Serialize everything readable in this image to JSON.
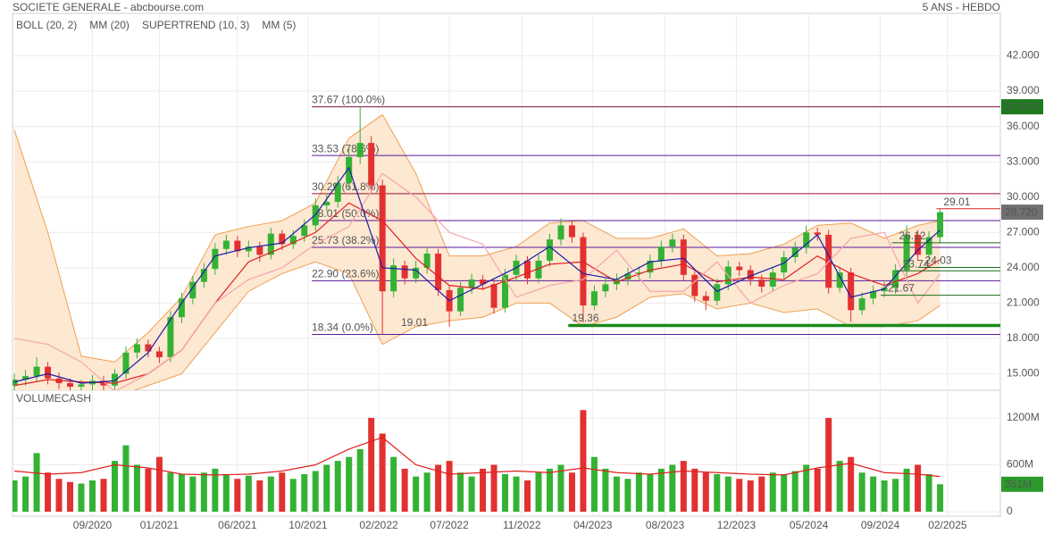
{
  "header": {
    "title": "SOCIETE GENERALE - abcbourse.com",
    "period": "5 ANS - HEBDO"
  },
  "chart_data": [
    {
      "type": "candlestick",
      "xlim": [
        -0.5,
        265.2
      ],
      "ylim": [
        13.6,
        45.6
      ],
      "yticks": [
        {
          "value": 15,
          "label": "15.000"
        },
        {
          "value": 18,
          "label": "18.000"
        },
        {
          "value": 21,
          "label": "21.000"
        },
        {
          "value": 24,
          "label": "24.000"
        },
        {
          "value": 27,
          "label": "27.000"
        },
        {
          "value": 30,
          "label": "30.000"
        },
        {
          "value": 33,
          "label": "33.000"
        },
        {
          "value": 36,
          "label": "36.000"
        },
        {
          "value": 39,
          "label": "39.000"
        },
        {
          "value": 42,
          "label": "42.000"
        }
      ],
      "grid": true,
      "up_color": "#33b233",
      "down_color": "#e23131",
      "candles": {
        "x": [
          0,
          3,
          6,
          9,
          12,
          15,
          18,
          21,
          24,
          27,
          30,
          33,
          36,
          39,
          42,
          45,
          48,
          51,
          54,
          57,
          60,
          63,
          66,
          69,
          72,
          75,
          78,
          81,
          84,
          87,
          90,
          93,
          96,
          99,
          102,
          105,
          108,
          111,
          114,
          117,
          120,
          123,
          126,
          129,
          132,
          135,
          138,
          141,
          144,
          147,
          150,
          153,
          156,
          159,
          162,
          165,
          168,
          171,
          174,
          177,
          180,
          183,
          186,
          189,
          192,
          195,
          198,
          201,
          204,
          207,
          210,
          213,
          216,
          219,
          222,
          225,
          228,
          231,
          234,
          237,
          240,
          243,
          246,
          249
        ],
        "open": [
          14.0,
          14.5,
          14.8,
          15.6,
          14.6,
          14.2,
          13.9,
          14.1,
          14.4,
          14.0,
          15.0,
          16.8,
          17.5,
          16.9,
          16.4,
          19.8,
          21.4,
          22.8,
          23.9,
          25.6,
          26.3,
          25.4,
          25.8,
          25.1,
          26.9,
          26.0,
          26.7,
          27.6,
          29.3,
          29.6,
          31.2,
          33.4,
          34.6,
          31.0,
          22.0,
          24.2,
          23.1,
          24.0,
          25.2,
          22.1,
          20.3,
          22.3,
          23.0,
          22.6,
          20.6,
          23.4,
          24.6,
          23.1,
          24.6,
          26.4,
          27.6,
          26.6,
          20.8,
          22.0,
          22.6,
          23.0,
          23.5,
          23.6,
          24.6,
          25.8,
          26.4,
          23.4,
          21.6,
          21.2,
          22.6,
          24.1,
          23.8,
          23.0,
          22.4,
          23.6,
          24.9,
          25.7,
          27.0,
          26.8,
          22.3,
          23.6,
          20.4,
          21.4,
          22.0,
          22.3,
          23.8,
          26.8,
          25.1,
          26.6
        ],
        "high": [
          15.0,
          15.3,
          16.4,
          16.0,
          15.1,
          14.6,
          14.5,
          14.9,
          14.8,
          15.4,
          17.3,
          18.0,
          17.9,
          17.3,
          20.3,
          21.9,
          23.3,
          24.4,
          26.1,
          26.8,
          26.7,
          26.3,
          26.2,
          27.4,
          27.2,
          27.2,
          28.1,
          29.9,
          30.2,
          31.8,
          34.2,
          37.67,
          35.2,
          31.5,
          24.8,
          24.6,
          24.6,
          25.8,
          25.6,
          22.5,
          22.8,
          23.5,
          23.4,
          23.0,
          23.9,
          25.1,
          25.0,
          25.1,
          26.9,
          28.2,
          28.0,
          27.0,
          22.5,
          23.1,
          23.5,
          24.0,
          24.1,
          25.1,
          26.3,
          26.9,
          26.8,
          23.8,
          22.0,
          23.1,
          24.6,
          24.5,
          24.2,
          23.4,
          24.1,
          25.4,
          26.2,
          27.6,
          27.4,
          27.2,
          24.1,
          24.0,
          21.9,
          22.5,
          22.8,
          24.3,
          27.6,
          27.2,
          27.1,
          29.01
        ],
        "low": [
          13.5,
          14.0,
          14.3,
          14.1,
          13.7,
          13.4,
          13.4,
          13.6,
          13.5,
          13.5,
          14.6,
          16.3,
          16.4,
          15.9,
          16.0,
          19.3,
          20.9,
          22.3,
          23.4,
          25.1,
          24.9,
          24.9,
          24.5,
          24.7,
          25.5,
          25.6,
          26.2,
          27.1,
          28.8,
          29.1,
          30.7,
          32.8,
          30.4,
          18.34,
          21.5,
          22.6,
          22.7,
          23.5,
          21.6,
          19.01,
          19.9,
          21.8,
          22.1,
          20.1,
          20.2,
          22.9,
          22.6,
          22.7,
          24.1,
          25.9,
          26.1,
          19.36,
          20.4,
          21.5,
          22.1,
          22.5,
          23.0,
          23.1,
          24.1,
          25.3,
          22.9,
          21.1,
          20.4,
          20.8,
          22.1,
          23.3,
          22.5,
          21.9,
          22.0,
          23.1,
          24.4,
          25.2,
          26.3,
          21.8,
          21.9,
          19.4,
          20.0,
          20.9,
          21.5,
          21.8,
          23.3,
          24.6,
          24.7,
          26.1
        ],
        "close": [
          14.5,
          14.8,
          15.6,
          14.6,
          14.2,
          13.9,
          14.1,
          14.4,
          14.0,
          15.0,
          16.8,
          17.5,
          16.9,
          16.4,
          19.8,
          21.4,
          22.8,
          23.9,
          25.6,
          26.3,
          25.4,
          25.8,
          25.1,
          26.9,
          26.0,
          26.7,
          27.6,
          29.3,
          29.6,
          31.2,
          33.4,
          34.6,
          31.0,
          22.0,
          24.2,
          23.1,
          24.0,
          25.2,
          22.1,
          20.3,
          22.3,
          23.0,
          22.6,
          20.6,
          23.4,
          24.6,
          23.1,
          24.6,
          26.4,
          27.6,
          26.6,
          20.8,
          22.0,
          22.6,
          23.0,
          23.5,
          23.6,
          24.6,
          25.8,
          26.4,
          23.4,
          21.6,
          21.2,
          22.6,
          24.1,
          23.8,
          23.0,
          22.4,
          23.6,
          24.9,
          25.7,
          27.0,
          26.8,
          22.3,
          23.6,
          20.4,
          21.4,
          22.0,
          22.3,
          23.8,
          26.8,
          25.1,
          26.6,
          28.72
        ]
      },
      "indicator_x": [
        0,
        9,
        18,
        27,
        36,
        45,
        54,
        63,
        72,
        81,
        90,
        99,
        108,
        117,
        126,
        135,
        144,
        153,
        162,
        171,
        180,
        189,
        198,
        207,
        216,
        225,
        234,
        243,
        249
      ],
      "bollinger": {
        "name": "BOLL (20, 2)",
        "color": "#f0a050",
        "fill": "#fde8d2",
        "upper": [
          35.7,
          27.0,
          16.5,
          16.0,
          18.5,
          21.5,
          26.8,
          27.5,
          28.0,
          29.5,
          35.0,
          37.0,
          32.0,
          25.0,
          25.0,
          25.8,
          27.8,
          28.0,
          26.5,
          26.5,
          27.3,
          25.0,
          25.2,
          26.0,
          27.6,
          27.8,
          26.5,
          27.6,
          28.0
        ],
        "lower": [
          12.0,
          12.5,
          13.0,
          13.0,
          14.0,
          15.0,
          18.5,
          22.0,
          23.5,
          24.5,
          23.5,
          17.5,
          19.0,
          19.5,
          19.8,
          21.0,
          21.0,
          19.0,
          19.8,
          21.5,
          21.8,
          20.5,
          21.0,
          20.2,
          20.5,
          19.0,
          19.0,
          19.5,
          20.8
        ]
      },
      "series": [
        {
          "name": "MM (20)",
          "color": "#e02020",
          "values": [
            14.0,
            14.5,
            14.3,
            14.2,
            15.0,
            17.0,
            21.0,
            24.5,
            25.7,
            27.0,
            29.5,
            28.0,
            24.8,
            22.5,
            22.2,
            23.2,
            24.3,
            24.5,
            22.8,
            23.8,
            24.3,
            22.8,
            23.2,
            23.0,
            25.0,
            23.5,
            22.5,
            23.5,
            24.7
          ]
        },
        {
          "name": "SUPERTREND (10, 3)",
          "color": "#f4a4ac",
          "values": [
            18,
            17.5,
            16,
            13.5,
            15,
            17,
            21,
            23,
            24,
            26,
            27.5,
            32,
            30,
            27,
            26,
            21.5,
            22.5,
            23,
            25.5,
            22,
            22,
            24.5,
            21,
            22.5,
            23.5,
            26.5,
            27,
            21,
            23.5
          ]
        },
        {
          "name": "MM (5)",
          "color": "#1c1ca8",
          "values": [
            14.3,
            15.0,
            14.2,
            14.4,
            16.8,
            21.0,
            25.0,
            25.7,
            26.1,
            28.5,
            32.5,
            24.0,
            23.8,
            21.2,
            22.6,
            24.0,
            25.8,
            23.5,
            23.0,
            24.5,
            24.8,
            22.0,
            23.3,
            24.4,
            26.8,
            21.5,
            22.2,
            25.5,
            27.2
          ]
        }
      ],
      "fib_from": 80,
      "fib_color": "#6a1aa0",
      "fib_levels": [
        {
          "value": 37.67,
          "label": "37.67 (100.0%)",
          "color": "#7a1040"
        },
        {
          "value": 33.53,
          "label": "33.53 (78.6%)",
          "color": "#5a1a9a"
        },
        {
          "value": 30.29,
          "label": "30.29 (61.8%)",
          "color": "#9a1030"
        },
        {
          "value": 28.01,
          "label": "28.01 (50.0%)",
          "color": "#5a1a9a"
        },
        {
          "value": 25.73,
          "label": "25.73 (38.2%)",
          "color": "#5a1a9a"
        },
        {
          "value": 22.9,
          "label": "22.90 (23.6%)",
          "color": "#5a1a9a"
        },
        {
          "value": 18.34,
          "label": "18.34 (0.0%)",
          "color": "#5a1a9a"
        }
      ],
      "lines": [
        {
          "value": 29.01,
          "label": "29.01",
          "from": 248,
          "color": "#e02020",
          "width": 1
        },
        {
          "value": 19.1,
          "from": 149,
          "color": "#1a8a1a",
          "width": 3.5
        },
        {
          "value": 26.12,
          "label": "26.12",
          "from": 236,
          "color": "#1a6a1a",
          "width": 1
        },
        {
          "value": 24.03,
          "label": "24.03",
          "from": 243,
          "color": "#1a6a1a",
          "width": 1
        },
        {
          "value": 23.74,
          "label": "23.74",
          "from": 237,
          "color": "#1a6a1a",
          "width": 1
        },
        {
          "value": 21.67,
          "label": "21.67",
          "from": 233,
          "color": "#1a6a1a",
          "width": 1
        }
      ],
      "point_labels": [
        {
          "x": 104,
          "value": 19.01,
          "label": "19.01",
          "color": "#2a8a2a"
        },
        {
          "x": 150,
          "value": 19.36,
          "label": "19.36",
          "color": "#2a8a2a"
        }
      ],
      "tags": [
        {
          "value": 37.67,
          "label": "37.670",
          "color": "#1e7a1e"
        },
        {
          "value": 28.72,
          "label": "28.720",
          "color": "#707070"
        }
      ]
    },
    {
      "type": "bar",
      "title": "VOLUMECASH",
      "title_color": "#33aa33",
      "xlim": [
        -0.5,
        265.2
      ],
      "ylim": [
        -57,
        1554
      ],
      "xticks": [
        {
          "value": 21,
          "label": "09/2020"
        },
        {
          "value": 39,
          "label": "01/2021"
        },
        {
          "value": 60,
          "label": "06/2021"
        },
        {
          "value": 79,
          "label": "10/2021"
        },
        {
          "value": 98,
          "label": "02/2022"
        },
        {
          "value": 117,
          "label": "07/2022"
        },
        {
          "value": 136.5,
          "label": "11/2022"
        },
        {
          "value": 155.6,
          "label": "04/2023"
        },
        {
          "value": 175,
          "label": "08/2023"
        },
        {
          "value": 194.2,
          "label": "12/2023"
        },
        {
          "value": 213.7,
          "label": "05/2024"
        },
        {
          "value": 232.9,
          "label": "09/2024"
        },
        {
          "value": 251,
          "label": "02/2025"
        }
      ],
      "yticks": [
        0,
        {
          "value": 600,
          "label": "600M"
        },
        {
          "value": 1200,
          "label": "1200M"
        }
      ],
      "grid": true,
      "x": [
        0,
        3,
        6,
        9,
        12,
        15,
        18,
        21,
        24,
        27,
        30,
        33,
        36,
        39,
        42,
        45,
        48,
        51,
        54,
        57,
        60,
        63,
        66,
        69,
        72,
        75,
        78,
        81,
        84,
        87,
        90,
        93,
        96,
        99,
        102,
        105,
        108,
        111,
        114,
        117,
        120,
        123,
        126,
        129,
        132,
        135,
        138,
        141,
        144,
        147,
        150,
        153,
        156,
        159,
        162,
        165,
        168,
        171,
        174,
        177,
        180,
        183,
        186,
        189,
        192,
        195,
        198,
        201,
        204,
        207,
        210,
        213,
        216,
        219,
        222,
        225,
        228,
        231,
        234,
        237,
        240,
        243,
        246,
        249
      ],
      "values": [
        400,
        450,
        750,
        500,
        420,
        380,
        360,
        400,
        420,
        650,
        850,
        600,
        550,
        700,
        500,
        480,
        450,
        500,
        550,
        480,
        420,
        460,
        400,
        450,
        500,
        420,
        480,
        520,
        600,
        650,
        700,
        800,
        1200,
        1000,
        700,
        550,
        450,
        500,
        600,
        650,
        500,
        450,
        550,
        600,
        480,
        450,
        400,
        500,
        550,
        600,
        500,
        1300,
        700,
        550,
        450,
        420,
        500,
        480,
        550,
        600,
        650,
        550,
        500,
        480,
        450,
        420,
        400,
        450,
        500,
        480,
        520,
        600,
        550,
        1200,
        650,
        700,
        500,
        450,
        400,
        420,
        550,
        600,
        480,
        351
      ],
      "ma_color": "#e02020",
      "ma_x": [
        0,
        9,
        18,
        27,
        36,
        45,
        54,
        63,
        72,
        81,
        90,
        99,
        108,
        117,
        126,
        135,
        144,
        153,
        162,
        171,
        180,
        189,
        198,
        207,
        216,
        225,
        234,
        243,
        249
      ],
      "ma": [
        520,
        480,
        500,
        600,
        560,
        480,
        470,
        480,
        520,
        600,
        800,
        950,
        600,
        480,
        500,
        520,
        500,
        560,
        500,
        480,
        520,
        500,
        480,
        470,
        560,
        620,
        500,
        480,
        450
      ],
      "tags": [
        {
          "value": 351,
          "label": "351M",
          "color": "#2a9a2a"
        }
      ]
    }
  ]
}
